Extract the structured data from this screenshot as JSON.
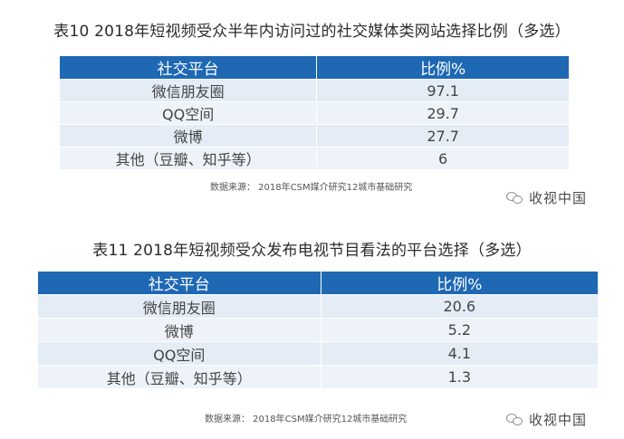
{
  "table10": {
    "title": "表10  2018年短视频受众半年内访问过的社交媒体类网站选择比例（多选）",
    "headers": [
      "社交平台",
      "比例%"
    ],
    "rows": [
      {
        "platform": "微信朋友圈",
        "value": "97.1"
      },
      {
        "platform": "QQ空间",
        "value": "29.7"
      },
      {
        "platform": "微博",
        "value": "27.7"
      },
      {
        "platform": "其他（豆瓣、知乎等）",
        "value": "6"
      }
    ],
    "source": "数据来源：  2018年CSM媒介研究12城市基础研究",
    "watermark": "收视中国"
  },
  "table11": {
    "title": "表11  2018年短视频受众发布电视节目看法的平台选择（多选）",
    "headers": [
      "社交平台",
      "比例%"
    ],
    "rows": [
      {
        "platform": "微信朋友圈",
        "value": "20.6"
      },
      {
        "platform": "微博",
        "value": "5.2"
      },
      {
        "platform": "QQ空间",
        "value": "4.1"
      },
      {
        "platform": "其他（豆瓣、知乎等）",
        "value": "1.3"
      }
    ],
    "source": "数据来源：  2018年CSM媒介研究12城市基础研究",
    "watermark": "收视中国"
  },
  "colors": {
    "header_bg": "#1e68b4",
    "row_bg": "#e4edf6"
  },
  "icons": {
    "watermark_icon": "wechat-icon"
  }
}
